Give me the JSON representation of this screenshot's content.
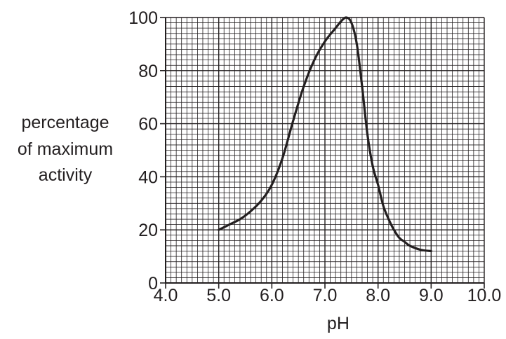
{
  "chart_data": {
    "type": "line",
    "title": "",
    "xlabel": "pH",
    "ylabel_lines": [
      "percentage",
      "of maximum",
      "activity"
    ],
    "xlim": [
      4.0,
      10.0
    ],
    "ylim": [
      0,
      100
    ],
    "x_ticks": [
      "4.0",
      "5.0",
      "6.0",
      "7.0",
      "8.0",
      "9.0",
      "10.0"
    ],
    "y_ticks": [
      "0",
      "20",
      "40",
      "60",
      "80",
      "100"
    ],
    "minor_grid_x_step": 0.1,
    "minor_grid_y_step": 2,
    "grid": true,
    "line_color": "#231f20",
    "grid_color": "#231f20",
    "series": [
      {
        "x": [
          5.0,
          5.2,
          5.4,
          5.6,
          5.8,
          6.0,
          6.2,
          6.4,
          6.6,
          6.8,
          7.0,
          7.2,
          7.3,
          7.4,
          7.5,
          7.6,
          7.7,
          7.8,
          7.9,
          8.0,
          8.1,
          8.2,
          8.3,
          8.4,
          8.5,
          8.6,
          8.8,
          9.0
        ],
        "y": [
          20,
          22,
          24,
          27,
          31,
          37,
          47,
          61,
          74,
          84,
          91,
          96,
          98.5,
          100,
          98,
          90,
          74,
          56,
          44,
          37,
          29,
          24,
          20,
          17,
          15.5,
          14,
          12.5,
          12
        ]
      }
    ]
  }
}
